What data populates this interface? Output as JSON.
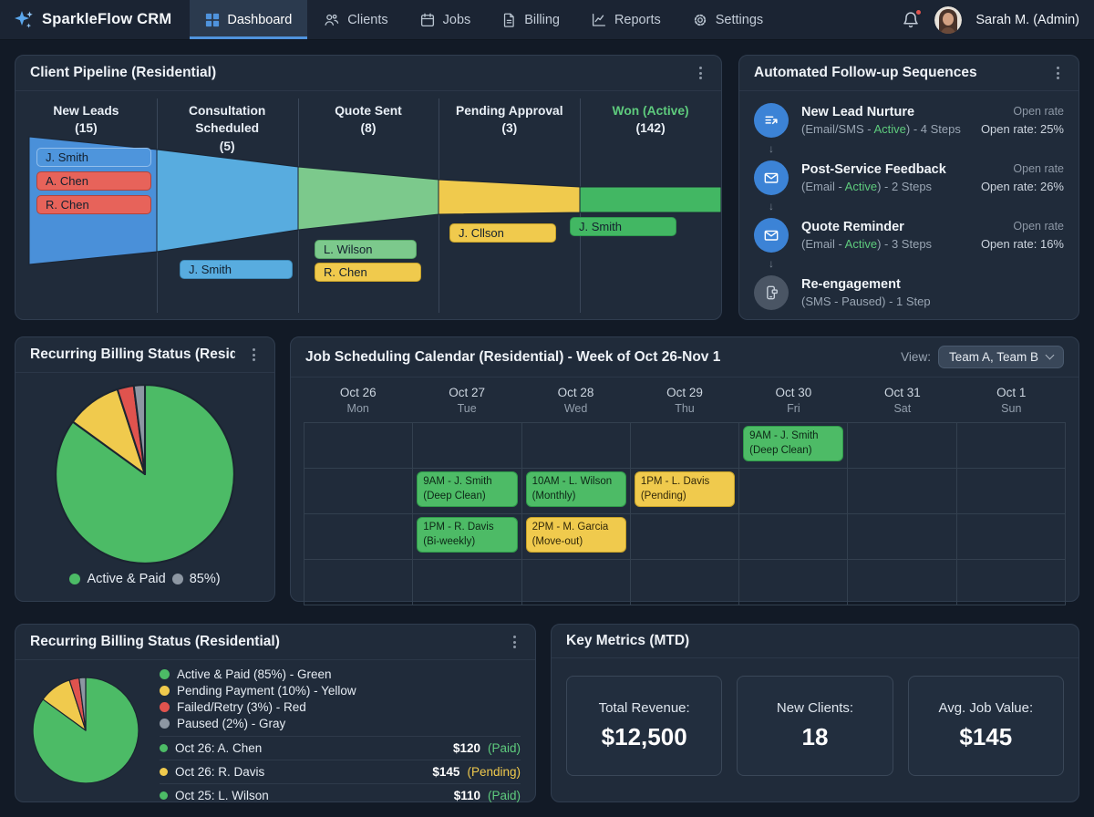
{
  "nav": {
    "brand": "SparkleFlow CRM",
    "tabs": [
      {
        "label": "Dashboard"
      },
      {
        "label": "Clients"
      },
      {
        "label": "Jobs"
      },
      {
        "label": "Billing"
      },
      {
        "label": "Reports"
      },
      {
        "label": "Settings"
      }
    ],
    "user": "Sarah M. (Admin)"
  },
  "pipeline": {
    "title": "Client Pipeline (Residential)",
    "stages": [
      {
        "name": "New Leads",
        "count": "(15)",
        "color": "#4a90d9"
      },
      {
        "name": "Consultation Scheduled",
        "count": "(5)",
        "color": "#58acdf"
      },
      {
        "name": "Quote Sent",
        "count": "(8)",
        "color": "#7cc98c"
      },
      {
        "name": "Pending Approval",
        "count": "(3)",
        "color": "#f0ca4d"
      },
      {
        "name": "Won (Active)",
        "count": "(142)",
        "color": "#42b763"
      }
    ],
    "chips": [
      {
        "label": "J. Smith",
        "color": "chip-blue"
      },
      {
        "label": "A. Chen",
        "color": "chip-red"
      },
      {
        "label": "R. Chen",
        "color": "chip-red"
      },
      {
        "label": "J. Smith",
        "color": "chip-lightblue"
      },
      {
        "label": "L. Wilson",
        "color": "chip-lightgreen"
      },
      {
        "label": "R. Chen",
        "color": "chip-yellow"
      },
      {
        "label": "J. Cllson",
        "color": "chip-yellow"
      },
      {
        "label": "J. Smith",
        "color": "chip-green"
      }
    ]
  },
  "sequences": {
    "title": "Automated Follow-up Sequences",
    "items": [
      {
        "title": "New Lead Nurture",
        "pre": "(Email/SMS - ",
        "status": "Active",
        "status_class": "status-active",
        "post": ") - 4 Steps",
        "rate_label": "Open rate",
        "rate_value": "Open rate: 25%"
      },
      {
        "title": "Post-Service Feedback",
        "pre": "(Email - ",
        "status": "Active",
        "status_class": "status-active",
        "post": ") - 2 Steps",
        "rate_label": "Open rate",
        "rate_value": "Open rate: 26%"
      },
      {
        "title": "Quote Reminder",
        "pre": "(Email - ",
        "status": "Active",
        "status_class": "status-active",
        "post": ") - 3 Steps",
        "rate_label": "Open rate",
        "rate_value": "Open rate: 16%"
      },
      {
        "title": "Re-engagement",
        "pre": "(SMS - ",
        "status": "Paused",
        "status_class": "status-paused",
        "post": ") - 1 Step",
        "rate_label": "",
        "rate_value": ""
      }
    ]
  },
  "billing_small": {
    "title": "Recurring Billing Status (Resid…",
    "pie": {
      "values": [
        85,
        10,
        3,
        2
      ],
      "colors": [
        "#4cbb66",
        "#f0ca4d",
        "#e0534e",
        "#8d97a3"
      ]
    },
    "legend": [
      {
        "label": "Active & Paid",
        "dot": "#4cbb66"
      },
      {
        "label": "85%)",
        "dot": "#8d97a3"
      }
    ]
  },
  "calendar": {
    "title": "Job Scheduling Calendar (Residential) - Week of Oct 26-Nov 1",
    "view_label": "View:",
    "view_value": "Team A, Team B",
    "days": [
      {
        "date": "Oct 26",
        "name": "Mon"
      },
      {
        "date": "Oct 27",
        "name": "Tue"
      },
      {
        "date": "Oct 28",
        "name": "Wed"
      },
      {
        "date": "Oct 29",
        "name": "Thu"
      },
      {
        "date": "Oct 30",
        "name": "Fri"
      },
      {
        "date": "Oct 31",
        "name": "Sat"
      },
      {
        "date": "Oct 1",
        "name": "Sun"
      }
    ],
    "events": [
      {
        "col": 4,
        "row": 0,
        "title": "9AM - J. Smith",
        "detail": "(Deep Clean)",
        "type": "green"
      },
      {
        "col": 1,
        "row": 1,
        "title": "9AM - J. Smith",
        "detail": "(Deep Clean)",
        "type": "green"
      },
      {
        "col": 2,
        "row": 1,
        "title": "10AM - L. Wilson",
        "detail": "(Monthly)",
        "type": "green"
      },
      {
        "col": 3,
        "row": 1,
        "title": "1PM - L. Davis",
        "detail": "(Pending)",
        "type": "yellow"
      },
      {
        "col": 1,
        "row": 2,
        "title": "1PM - R. Davis",
        "detail": "(Bi-weekly)",
        "type": "green"
      },
      {
        "col": 2,
        "row": 2,
        "title": "2PM - M. Garcia",
        "detail": "(Move-out)",
        "type": "yellow"
      }
    ]
  },
  "billing_detail": {
    "title": "Recurring Billing Status (Residential)",
    "pie": {
      "values": [
        85,
        10,
        3,
        2
      ],
      "colors": [
        "#4cbb66",
        "#f0ca4d",
        "#e0534e",
        "#8d97a3"
      ]
    },
    "legend": [
      {
        "label": "Active & Paid (85%) - Green",
        "dot": "#4cbb66"
      },
      {
        "label": "Pending Payment (10%) - Yellow",
        "dot": "#f0ca4d"
      },
      {
        "label": "Failed/Retry (3%) - Red",
        "dot": "#e0534e"
      },
      {
        "label": "Paused (2%) - Gray",
        "dot": "#8d97a3"
      }
    ],
    "payments": [
      {
        "label": "Oct 26: A. Chen",
        "amount": "$120",
        "status": "(Paid)",
        "status_class": "st-paid",
        "dot": "#4cbb66"
      },
      {
        "label": "Oct 26: R. Davis",
        "amount": "$145",
        "status": "(Pending)",
        "status_class": "st-pending",
        "dot": "#f0ca4d"
      },
      {
        "label": "Oct 25: L. Wilson",
        "amount": "$110",
        "status": "(Paid)",
        "status_class": "st-paid",
        "dot": "#4cbb66"
      }
    ]
  },
  "metrics": {
    "title": "Key Metrics (MTD)",
    "cards": [
      {
        "label": "Total Revenue:",
        "value": "$12,500"
      },
      {
        "label": "New Clients:",
        "value": "18"
      },
      {
        "label": "Avg. Job Value:",
        "value": "$145"
      }
    ]
  },
  "chart_data": [
    {
      "type": "funnel",
      "title": "Client Pipeline (Residential)",
      "categories": [
        "New Leads",
        "Consultation Scheduled",
        "Quote Sent",
        "Pending Approval",
        "Won (Active)"
      ],
      "values": [
        15,
        5,
        8,
        3,
        142
      ]
    },
    {
      "type": "pie",
      "title": "Recurring Billing Status (Residential)",
      "labels": [
        "Active & Paid",
        "Pending Payment",
        "Failed/Retry",
        "Paused"
      ],
      "values": [
        85,
        10,
        3,
        2
      ],
      "colors": [
        "#4cbb66",
        "#f0ca4d",
        "#e0534e",
        "#8d97a3"
      ],
      "legend_position": "right"
    }
  ]
}
